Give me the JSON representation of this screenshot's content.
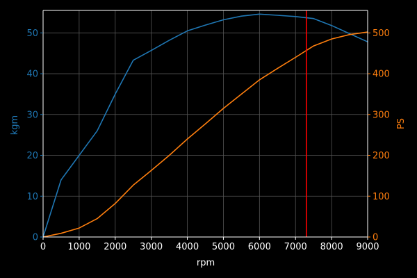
{
  "chart_data": {
    "type": "line",
    "xlabel": "rpm",
    "ylabel_left": "kgm",
    "ylabel_right": "PS",
    "xlim": [
      0,
      9000
    ],
    "ylim_left": [
      0,
      55.5
    ],
    "ylim_right": [
      0,
      555
    ],
    "x_ticks": [
      0,
      1000,
      2000,
      3000,
      4000,
      5000,
      6000,
      7000,
      8000,
      9000
    ],
    "y_ticks_left": [
      0,
      10,
      20,
      30,
      40,
      50
    ],
    "y_ticks_right": [
      0,
      100,
      200,
      300,
      400,
      500
    ],
    "grid": true,
    "redline_rpm": 7300,
    "series": [
      {
        "axis": "left",
        "color": "#1f77b4",
        "x": [
          0,
          500,
          1000,
          1500,
          2000,
          2500,
          3000,
          3500,
          4000,
          4500,
          5000,
          5500,
          6000,
          6500,
          7000,
          7500,
          8000,
          8500,
          9000
        ],
        "values": [
          0,
          14,
          20,
          26,
          35,
          43.3,
          45.7,
          48.2,
          50.5,
          51.9,
          53.2,
          54.1,
          54.6,
          54.3,
          54.0,
          53.5,
          51.8,
          49.8,
          47.8
        ]
      },
      {
        "axis": "right",
        "color": "#ff7f0e",
        "x": [
          0,
          500,
          1000,
          1500,
          2000,
          2500,
          3000,
          3500,
          4000,
          4500,
          5000,
          5500,
          6000,
          6500,
          7000,
          7500,
          8000,
          8500,
          9000
        ],
        "values": [
          0,
          9,
          22,
          45,
          82,
          127,
          163,
          200,
          240,
          277,
          315,
          350,
          385,
          413,
          440,
          468,
          485,
          496,
          502
        ]
      }
    ],
    "colors": {
      "background": "#000000",
      "axes": "#ffffff",
      "grid": "#555555",
      "left_axis": "#1f77b4",
      "right_axis": "#ff7f0e",
      "redline": "#ff0000"
    }
  }
}
